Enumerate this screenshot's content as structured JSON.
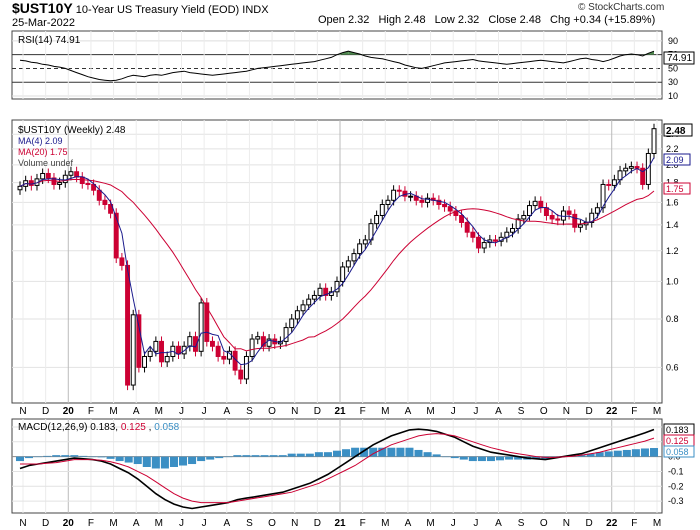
{
  "header": {
    "symbol": "$UST10Y",
    "name": "10-Year US Treasury Yield (EOD)",
    "exchange": "INDX",
    "date": "25-Mar-2022",
    "open_label": "Open",
    "open": "2.32",
    "high_label": "High",
    "high": "2.48",
    "low_label": "Low",
    "low": "2.32",
    "close_label": "Close",
    "close": "2.48",
    "chg_label": "Chg",
    "chg": "+0.34 (+15.89%)",
    "watermark": "© StockCharts.com"
  },
  "colors": {
    "up": "#000000",
    "down": "#cc0033",
    "ma_fast": "#1a1a8c",
    "ma_slow": "#cc0033",
    "macd_line": "#000000",
    "signal_line": "#cc0033",
    "histogram": "#3b8fc4",
    "rsi_overbought_fill": "#4f8a4f",
    "rsi_oversold_fill": "#cc3344"
  },
  "chart_data": [
    {
      "type": "line",
      "panel": "RSI",
      "legend": "RSI(14) 74.91",
      "value": 74.91,
      "ylim": [
        10,
        100
      ],
      "levels": [
        70,
        50,
        30
      ],
      "ticks": [
        90,
        70,
        50,
        30,
        10
      ],
      "tick_labels": [
        "90",
        "70",
        "50",
        "30",
        "10"
      ],
      "values": [
        62,
        61,
        59,
        58,
        56,
        55,
        53,
        52,
        50,
        47,
        44,
        41,
        38,
        36,
        34,
        33,
        32,
        33,
        35,
        38,
        40,
        39,
        38,
        40,
        41,
        40,
        42,
        44,
        45,
        46,
        44,
        43,
        42,
        41,
        40,
        41,
        42,
        43,
        44,
        45,
        46,
        48,
        50,
        51,
        52,
        53,
        54,
        55,
        56,
        57,
        58,
        59,
        60,
        62,
        64,
        66,
        70,
        73,
        75,
        73,
        71,
        68,
        66,
        65,
        64,
        62,
        60,
        58,
        55,
        53,
        51,
        50,
        52,
        54,
        56,
        58,
        59,
        60,
        61,
        62,
        63,
        61,
        60,
        59,
        58,
        57,
        56,
        57,
        58,
        59,
        60,
        61,
        62,
        61,
        60,
        59,
        58,
        60,
        62,
        64,
        65,
        63,
        62,
        60,
        62,
        65,
        68,
        70,
        71,
        70,
        68,
        72,
        75
      ]
    },
    {
      "type": "candlestick",
      "panel": "Price",
      "legend": [
        "$UST10Y (Weekly) 2.48",
        "MA(4) 2.09",
        "MA(20) 1.75",
        "Volume undef"
      ],
      "ylim": [
        0.5,
        2.55
      ],
      "log_scale": true,
      "ticks": [
        2.4,
        2.2,
        2.0,
        1.8,
        1.6,
        1.4,
        1.2,
        1.0,
        0.8,
        0.6
      ],
      "tick_labels": [
        "2.4",
        "2.2",
        "2.0",
        "1.8",
        "1.6",
        "1.4",
        "1.2",
        "1.0",
        "0.8",
        "0.6"
      ],
      "x_labels": [
        "N",
        "D",
        "20",
        "F",
        "M",
        "A",
        "M",
        "J",
        "J",
        "A",
        "S",
        "O",
        "N",
        "D",
        "21",
        "F",
        "M",
        "A",
        "M",
        "J",
        "J",
        "A",
        "S",
        "O",
        "N",
        "D",
        "22",
        "F",
        "M"
      ],
      "closes": [
        1.76,
        1.82,
        1.77,
        1.84,
        1.9,
        1.85,
        1.78,
        1.8,
        1.88,
        1.92,
        1.86,
        1.79,
        1.78,
        1.72,
        1.62,
        1.58,
        1.5,
        1.15,
        1.1,
        0.54,
        0.82,
        0.6,
        0.64,
        0.66,
        0.7,
        0.62,
        0.64,
        0.68,
        0.65,
        0.68,
        0.72,
        0.66,
        0.88,
        0.7,
        0.68,
        0.64,
        0.63,
        0.66,
        0.59,
        0.56,
        0.64,
        0.71,
        0.72,
        0.68,
        0.71,
        0.69,
        0.7,
        0.76,
        0.8,
        0.84,
        0.87,
        0.9,
        0.92,
        0.96,
        0.92,
        0.94,
        1.0,
        1.09,
        1.13,
        1.18,
        1.25,
        1.28,
        1.41,
        1.48,
        1.58,
        1.62,
        1.72,
        1.71,
        1.66,
        1.66,
        1.62,
        1.6,
        1.64,
        1.62,
        1.58,
        1.56,
        1.52,
        1.48,
        1.42,
        1.34,
        1.3,
        1.22,
        1.26,
        1.28,
        1.27,
        1.3,
        1.34,
        1.37,
        1.45,
        1.48,
        1.57,
        1.61,
        1.55,
        1.48,
        1.45,
        1.44,
        1.52,
        1.49,
        1.38,
        1.4,
        1.42,
        1.5,
        1.55,
        1.78,
        1.77,
        1.83,
        1.93,
        1.96,
        1.98,
        1.96,
        1.78,
        2.14,
        2.48
      ]
    },
    {
      "type": "line",
      "panel": "MACD",
      "legend_prefix": "MACD(12,26,9) 0.183, ",
      "signal_value": "0.125",
      "signal_sep": ", ",
      "hist_value": "0.058",
      "ylim": [
        -0.36,
        0.22
      ],
      "ticks": [
        0.2,
        0.1,
        0.0,
        -0.1,
        -0.2,
        -0.3
      ],
      "tick_labels": [
        "0.2",
        "0.1",
        "0.0",
        "-0.1",
        "-0.2",
        "-0.3"
      ],
      "badges": [
        "0.183",
        "0.125",
        "0.058"
      ],
      "x_labels": [
        "N",
        "D",
        "20",
        "F",
        "M",
        "A",
        "M",
        "J",
        "J",
        "A",
        "S",
        "O",
        "N",
        "D",
        "21",
        "F",
        "M",
        "A",
        "M",
        "J",
        "J",
        "A",
        "S",
        "O",
        "N",
        "D",
        "22",
        "F",
        "M"
      ],
      "series": [
        {
          "values": [
            -0.08,
            -0.06,
            -0.05,
            -0.04,
            -0.03,
            -0.02,
            -0.01,
            -0.015,
            -0.02,
            -0.03,
            -0.05,
            -0.08,
            -0.11,
            -0.15,
            -0.2,
            -0.25,
            -0.29,
            -0.32,
            -0.34,
            -0.35,
            -0.34,
            -0.33,
            -0.32,
            -0.31,
            -0.29,
            -0.28,
            -0.27,
            -0.26,
            -0.25,
            -0.24,
            -0.22,
            -0.2,
            -0.18,
            -0.15,
            -0.12,
            -0.08,
            -0.04,
            0.0,
            0.04,
            0.08,
            0.11,
            0.14,
            0.16,
            0.18,
            0.185,
            0.18,
            0.17,
            0.15,
            0.13,
            0.1,
            0.07,
            0.05,
            0.03,
            0.02,
            0.01,
            0.0,
            -0.01,
            -0.015,
            -0.02,
            -0.01,
            0.0,
            0.01,
            0.02,
            0.04,
            0.06,
            0.08,
            0.1,
            0.12,
            0.14,
            0.16,
            0.183
          ]
        },
        {
          "values": [
            -0.05,
            -0.05,
            -0.05,
            -0.045,
            -0.04,
            -0.03,
            -0.02,
            -0.02,
            -0.02,
            -0.025,
            -0.035,
            -0.05,
            -0.07,
            -0.1,
            -0.13,
            -0.17,
            -0.21,
            -0.25,
            -0.28,
            -0.3,
            -0.31,
            -0.31,
            -0.31,
            -0.31,
            -0.3,
            -0.29,
            -0.28,
            -0.27,
            -0.26,
            -0.25,
            -0.24,
            -0.22,
            -0.2,
            -0.18,
            -0.15,
            -0.12,
            -0.09,
            -0.06,
            -0.02,
            0.02,
            0.05,
            0.08,
            0.1,
            0.12,
            0.14,
            0.15,
            0.155,
            0.15,
            0.14,
            0.12,
            0.1,
            0.08,
            0.06,
            0.045,
            0.03,
            0.02,
            0.01,
            0.0,
            -0.005,
            -0.005,
            -0.002,
            0.003,
            0.01,
            0.02,
            0.03,
            0.045,
            0.06,
            0.075,
            0.09,
            0.105,
            0.125
          ]
        },
        {
          "values": [
            -0.03,
            -0.01,
            0.0,
            0.005,
            0.01,
            0.01,
            0.01,
            0.005,
            0.0,
            -0.005,
            -0.015,
            -0.03,
            -0.04,
            -0.05,
            -0.07,
            -0.08,
            -0.08,
            -0.07,
            -0.06,
            -0.05,
            -0.03,
            -0.02,
            -0.01,
            0.0,
            0.01,
            0.01,
            0.01,
            0.01,
            0.01,
            0.01,
            0.02,
            0.02,
            0.02,
            0.03,
            0.03,
            0.04,
            0.05,
            0.06,
            0.06,
            0.06,
            0.06,
            0.06,
            0.06,
            0.06,
            0.045,
            0.03,
            0.015,
            0.0,
            -0.01,
            -0.02,
            -0.03,
            -0.03,
            -0.03,
            -0.025,
            -0.02,
            -0.02,
            -0.02,
            -0.015,
            -0.015,
            -0.005,
            0.002,
            0.007,
            0.01,
            0.02,
            0.03,
            0.035,
            0.04,
            0.045,
            0.05,
            0.055,
            0.058
          ]
        }
      ]
    }
  ]
}
